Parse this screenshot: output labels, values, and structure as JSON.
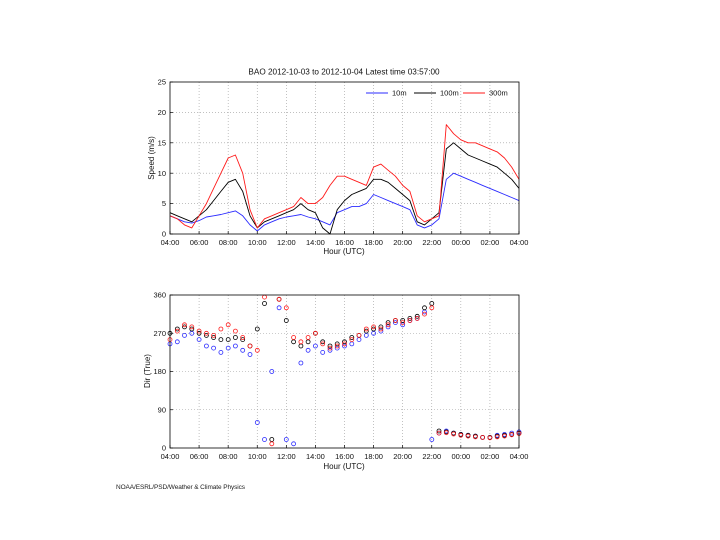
{
  "credit": "NOAA/ESRL/PSD/Weather & Climate Physics",
  "chart_data": [
    {
      "type": "line",
      "title": "BAO 2012-10-03 to 2012-10-04 Latest time 03:57:00",
      "xlabel": "Hour (UTC)",
      "ylabel": "Speed (m/s)",
      "xlim_hours": [
        4,
        28
      ],
      "ylim": [
        0,
        25
      ],
      "yticks": [
        "0",
        "5",
        "10",
        "15",
        "20",
        "25"
      ],
      "xticks": [
        "04:00",
        "06:00",
        "08:00",
        "10:00",
        "12:00",
        "14:00",
        "16:00",
        "18:00",
        "20:00",
        "22:00",
        "00:00",
        "02:00",
        "04:00"
      ],
      "grid": true,
      "legend_position": "top-right",
      "x_hours": [
        4,
        4.5,
        5,
        5.5,
        6,
        6.5,
        7,
        7.5,
        8,
        8.5,
        9,
        9.5,
        10,
        10.5,
        11,
        11.5,
        12,
        12.5,
        13,
        13.5,
        14,
        14.5,
        15,
        15.5,
        16,
        16.5,
        17,
        17.5,
        18,
        18.5,
        19,
        19.5,
        20,
        20.5,
        21,
        21.5,
        22,
        22.5,
        23,
        23.5,
        24,
        24.5,
        25,
        25.5,
        26,
        26.5,
        27,
        27.5,
        28
      ],
      "series": [
        {
          "name": "10m",
          "color": "#2b2bff",
          "values": [
            3,
            2.5,
            2,
            1.8,
            2.2,
            2.8,
            3,
            3.2,
            3.5,
            3.8,
            3,
            1.5,
            0.5,
            1.5,
            2,
            2.5,
            2.8,
            3,
            3.2,
            2.8,
            2.5,
            2,
            1.5,
            3.5,
            4,
            4.5,
            4.5,
            5,
            6.5,
            6,
            5.5,
            5,
            4.5,
            4,
            1.5,
            1,
            1.5,
            2.5,
            9,
            10,
            9.5,
            9,
            8.5,
            8,
            7.5,
            7,
            6.5,
            6,
            5.5
          ]
        },
        {
          "name": "100m",
          "color": "#000000",
          "values": [
            3.5,
            3,
            2.5,
            2,
            3,
            4,
            5.5,
            7,
            8.5,
            9,
            7,
            3,
            1,
            2,
            2.5,
            3,
            3.5,
            4,
            5,
            4,
            3.5,
            1,
            0,
            4,
            5.5,
            6.5,
            7,
            7.5,
            9,
            9,
            8.5,
            7.5,
            6.5,
            5.5,
            2,
            1.5,
            2.5,
            3.5,
            14,
            15,
            14,
            13,
            12.5,
            12,
            11.5,
            11,
            10,
            9,
            7.5
          ]
        },
        {
          "name": "300m",
          "color": "#ff1a1a",
          "values": [
            3,
            2.5,
            1.5,
            1,
            3,
            5,
            7.5,
            10,
            12.5,
            13,
            10,
            4,
            1,
            2.5,
            3,
            3.5,
            4,
            4.5,
            6,
            5,
            5,
            6,
            8,
            9.5,
            9.5,
            9,
            8.5,
            8,
            11,
            11.5,
            10.5,
            9.5,
            8,
            7,
            3,
            2,
            2.5,
            3,
            18,
            16.5,
            15.5,
            15,
            15,
            14.5,
            14,
            13.5,
            12.5,
            11,
            9
          ]
        }
      ]
    },
    {
      "type": "scatter",
      "xlabel": "Hour (UTC)",
      "ylabel": "Dir (True)",
      "xlim_hours": [
        4,
        28
      ],
      "ylim": [
        0,
        360
      ],
      "yticks": [
        "0",
        "90",
        "180",
        "270",
        "360"
      ],
      "xticks": [
        "04:00",
        "06:00",
        "08:00",
        "10:00",
        "12:00",
        "14:00",
        "16:00",
        "18:00",
        "20:00",
        "22:00",
        "00:00",
        "02:00",
        "04:00"
      ],
      "grid": true,
      "x_hours": [
        4,
        4.5,
        5,
        5.5,
        6,
        6.5,
        7,
        7.5,
        8,
        8.5,
        9,
        9.5,
        10,
        10.5,
        11,
        11.5,
        12,
        12.5,
        13,
        13.5,
        14,
        14.5,
        15,
        15.5,
        16,
        16.5,
        17,
        17.5,
        18,
        18.5,
        19,
        19.5,
        20,
        20.5,
        21,
        21.5,
        22,
        22.5,
        23,
        23.5,
        24,
        24.5,
        25,
        25.5,
        26,
        26.5,
        27,
        27.5,
        28
      ],
      "series": [
        {
          "name": "10m",
          "color": "#2b2bff",
          "values": [
            245,
            250,
            265,
            270,
            255,
            240,
            235,
            225,
            235,
            240,
            230,
            220,
            60,
            20,
            180,
            330,
            20,
            10,
            200,
            230,
            240,
            225,
            230,
            235,
            240,
            245,
            255,
            265,
            270,
            275,
            285,
            295,
            290,
            300,
            305,
            320,
            20,
            35,
            40,
            35,
            32,
            30,
            28,
            25,
            25,
            30,
            32,
            35,
            38
          ]
        },
        {
          "name": "100m",
          "color": "#000000",
          "values": [
            270,
            280,
            285,
            280,
            270,
            265,
            260,
            255,
            255,
            260,
            255,
            240,
            280,
            340,
            20,
            350,
            300,
            250,
            240,
            250,
            270,
            250,
            240,
            245,
            250,
            260,
            265,
            275,
            280,
            285,
            295,
            300,
            300,
            305,
            310,
            330,
            340,
            40,
            38,
            35,
            32,
            30,
            28,
            25,
            25,
            28,
            30,
            32,
            35
          ]
        },
        {
          "name": "300m",
          "color": "#ff1a1a",
          "values": [
            255,
            275,
            290,
            285,
            275,
            270,
            265,
            280,
            290,
            275,
            260,
            240,
            230,
            355,
            10,
            350,
            330,
            260,
            250,
            260,
            270,
            245,
            235,
            240,
            245,
            255,
            265,
            280,
            285,
            280,
            290,
            300,
            295,
            300,
            305,
            315,
            330,
            35,
            36,
            33,
            30,
            28,
            26,
            25,
            24,
            26,
            28,
            31,
            34
          ]
        }
      ]
    }
  ]
}
